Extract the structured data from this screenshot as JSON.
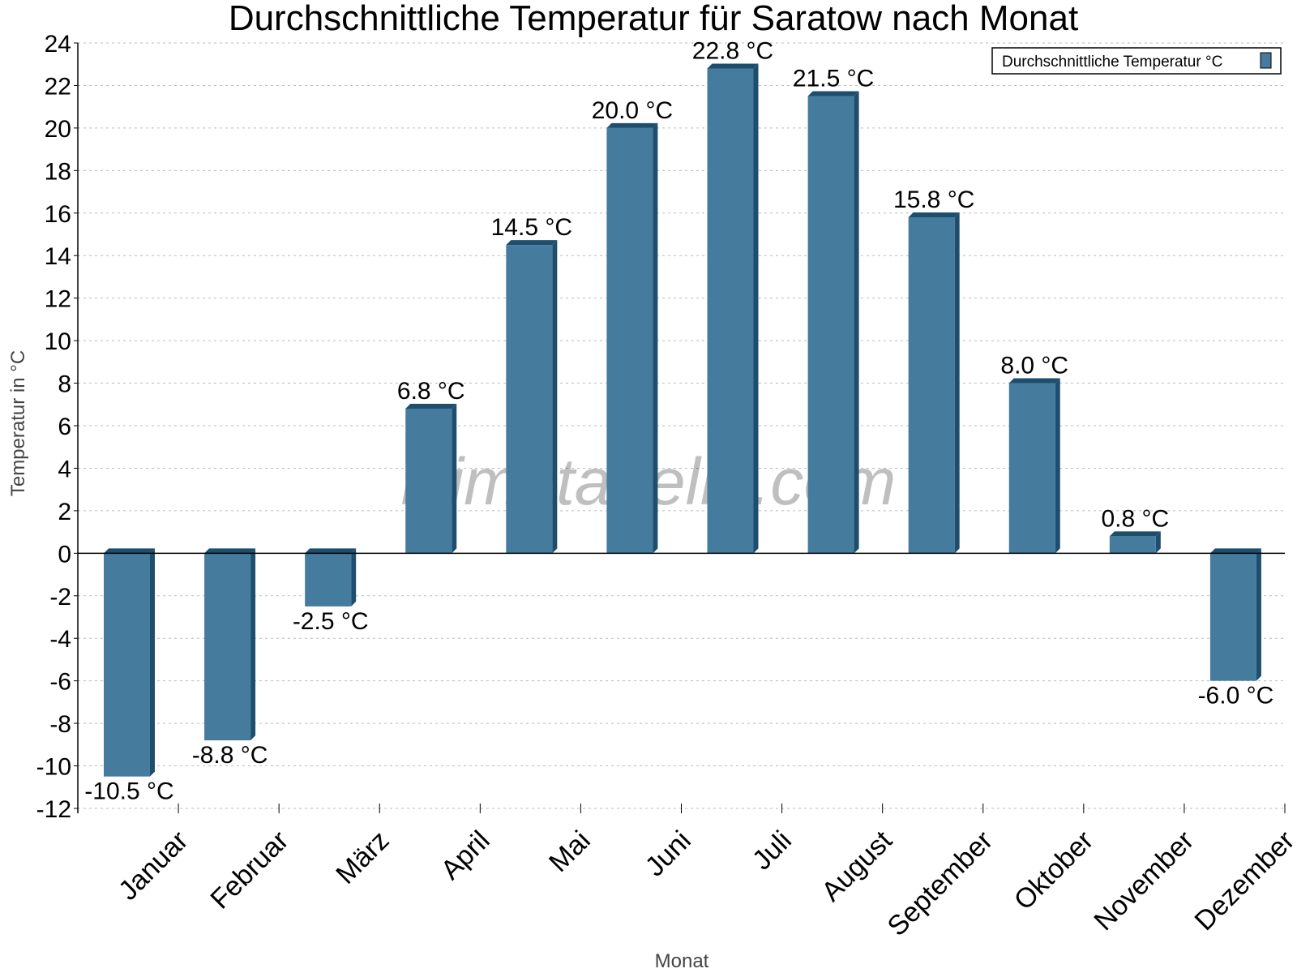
{
  "chart_data": {
    "type": "bar",
    "title": "Durchschnittliche Temperatur für Saratow nach Monat",
    "xlabel": "Monat",
    "ylabel": "Temperatur in °C",
    "categories": [
      "Januar",
      "Februar",
      "März",
      "April",
      "Mai",
      "Juni",
      "Juli",
      "August",
      "September",
      "Oktober",
      "November",
      "Dezember"
    ],
    "series": [
      {
        "name": "Durchschnittliche Temperatur °C",
        "values": [
          -10.5,
          -8.8,
          -2.5,
          6.8,
          14.5,
          20.0,
          22.8,
          21.5,
          15.8,
          8.0,
          0.8,
          -6.0
        ],
        "color": "#457b9d",
        "side_color": "#1d4e6e"
      }
    ],
    "value_suffix": " °C",
    "ylim": [
      -12,
      24
    ],
    "ytick_step": 2,
    "grid": true,
    "legend_position": "top-right",
    "watermark": "klimatabelle.com"
  }
}
